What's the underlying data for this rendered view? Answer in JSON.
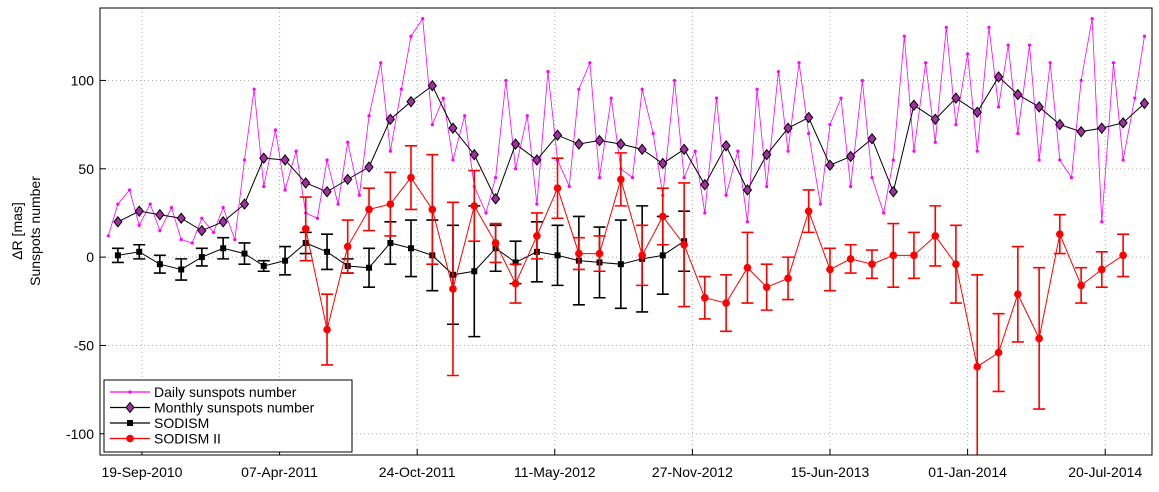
{
  "chart_data": {
    "type": "line",
    "ylabel": [
      "ΔR [mas]",
      "Sunspots number"
    ],
    "xlim": [
      "2010-07-20",
      "2014-09-26"
    ],
    "xticks": [
      {
        "value": "2010-09-19",
        "label": "19-Sep-2010"
      },
      {
        "value": "2011-04-07",
        "label": "07-Apr-2011"
      },
      {
        "value": "2011-10-24",
        "label": "24-Oct-2011"
      },
      {
        "value": "2012-05-11",
        "label": "11-May-2012"
      },
      {
        "value": "2012-11-27",
        "label": "27-Nov-2012"
      },
      {
        "value": "2013-06-15",
        "label": "15-Jun-2013"
      },
      {
        "value": "2014-01-01",
        "label": "01-Jan-2014"
      },
      {
        "value": "2014-07-20",
        "label": "20-Jul-2014"
      }
    ],
    "ylim": [
      -112,
      141
    ],
    "yticks": [
      -100,
      -50,
      0,
      50,
      100
    ],
    "grid": true,
    "legend": "lower left",
    "series": [
      {
        "name": "Daily sunspots number",
        "color": "#ff00ff",
        "marker": "dot",
        "x": [
          "2010-08-01",
          "2010-08-15",
          "2010-09-01",
          "2010-09-15",
          "2010-10-01",
          "2010-10-15",
          "2010-11-01",
          "2010-11-15",
          "2010-12-01",
          "2010-12-15",
          "2011-01-01",
          "2011-01-15",
          "2011-02-01",
          "2011-02-15",
          "2011-03-01",
          "2011-03-15",
          "2011-04-01",
          "2011-04-15",
          "2011-05-01",
          "2011-05-15",
          "2011-06-01",
          "2011-06-15",
          "2011-07-01",
          "2011-07-15",
          "2011-08-01",
          "2011-08-15",
          "2011-09-01",
          "2011-09-15",
          "2011-10-01",
          "2011-10-15",
          "2011-11-01",
          "2011-11-15",
          "2011-12-01",
          "2011-12-15",
          "2012-01-01",
          "2012-01-15",
          "2012-02-01",
          "2012-02-15",
          "2012-03-01",
          "2012-03-15",
          "2012-04-01",
          "2012-04-15",
          "2012-05-01",
          "2012-05-15",
          "2012-06-01",
          "2012-06-15",
          "2012-07-01",
          "2012-07-15",
          "2012-08-01",
          "2012-08-15",
          "2012-09-01",
          "2012-09-15",
          "2012-10-01",
          "2012-10-15",
          "2012-11-01",
          "2012-11-15",
          "2012-12-01",
          "2012-12-15",
          "2013-01-01",
          "2013-01-15",
          "2013-02-01",
          "2013-02-15",
          "2013-03-01",
          "2013-03-15",
          "2013-04-01",
          "2013-04-15",
          "2013-05-01",
          "2013-05-15",
          "2013-06-01",
          "2013-06-15",
          "2013-07-01",
          "2013-07-15",
          "2013-08-01",
          "2013-08-15",
          "2013-09-01",
          "2013-09-15",
          "2013-10-01",
          "2013-10-15",
          "2013-11-01",
          "2013-11-15",
          "2013-12-01",
          "2013-12-15",
          "2014-01-01",
          "2014-01-15",
          "2014-02-01",
          "2014-02-15",
          "2014-03-01",
          "2014-03-15",
          "2014-04-01",
          "2014-04-15",
          "2014-05-01",
          "2014-05-15",
          "2014-06-01",
          "2014-06-15",
          "2014-07-01",
          "2014-07-15",
          "2014-08-01",
          "2014-08-15",
          "2014-09-01",
          "2014-09-15"
        ],
        "values": [
          12,
          30,
          38,
          18,
          30,
          15,
          28,
          10,
          8,
          22,
          14,
          28,
          10,
          55,
          95,
          40,
          72,
          38,
          60,
          25,
          22,
          55,
          30,
          65,
          35,
          80,
          110,
          60,
          95,
          125,
          135,
          75,
          90,
          55,
          80,
          40,
          25,
          45,
          100,
          50,
          80,
          30,
          105,
          55,
          40,
          95,
          110,
          45,
          90,
          50,
          45,
          95,
          70,
          35,
          100,
          45,
          60,
          25,
          90,
          35,
          60,
          20,
          95,
          40,
          105,
          60,
          110,
          70,
          30,
          75,
          90,
          40,
          100,
          45,
          25,
          55,
          125,
          60,
          110,
          65,
          130,
          75,
          115,
          60,
          130,
          85,
          120,
          70,
          120,
          55,
          110,
          55,
          45,
          100,
          135,
          20,
          110,
          55,
          90,
          125
        ]
      },
      {
        "name": "Monthly sunspots number",
        "color": "#000000",
        "marker": "diamond",
        "marker_fill": "#a030a0",
        "x": [
          "2010-08-15",
          "2010-09-15",
          "2010-10-15",
          "2010-11-15",
          "2010-12-15",
          "2011-01-15",
          "2011-02-15",
          "2011-03-15",
          "2011-04-15",
          "2011-05-15",
          "2011-06-15",
          "2011-07-15",
          "2011-08-15",
          "2011-09-15",
          "2011-10-15",
          "2011-11-15",
          "2011-12-15",
          "2012-01-15",
          "2012-02-15",
          "2012-03-15",
          "2012-04-15",
          "2012-05-15",
          "2012-06-15",
          "2012-07-15",
          "2012-08-15",
          "2012-09-15",
          "2012-10-15",
          "2012-11-15",
          "2012-12-15",
          "2013-01-15",
          "2013-02-15",
          "2013-03-15",
          "2013-04-15",
          "2013-05-15",
          "2013-06-15",
          "2013-07-15",
          "2013-08-15",
          "2013-09-15",
          "2013-10-15",
          "2013-11-15",
          "2013-12-15",
          "2014-01-15",
          "2014-02-15",
          "2014-03-15",
          "2014-04-15",
          "2014-05-15",
          "2014-06-15",
          "2014-07-15",
          "2014-08-15",
          "2014-09-15"
        ],
        "values": [
          20,
          26,
          24,
          22,
          15,
          20,
          30,
          56,
          55,
          42,
          37,
          44,
          51,
          78,
          88,
          97,
          73,
          58,
          33,
          64,
          55,
          69,
          64,
          66,
          64,
          61,
          53,
          61,
          41,
          63,
          38,
          58,
          73,
          79,
          52,
          57,
          67,
          37,
          86,
          78,
          90,
          82,
          102,
          92,
          85,
          75,
          71,
          73,
          76,
          87
        ]
      },
      {
        "name": "SODISM",
        "color": "#000000",
        "marker": "square",
        "x": [
          "2010-08-15",
          "2010-09-15",
          "2010-10-15",
          "2010-11-15",
          "2010-12-15",
          "2011-01-15",
          "2011-02-15",
          "2011-03-15",
          "2011-04-15",
          "2011-05-15",
          "2011-06-15",
          "2011-07-15",
          "2011-08-15",
          "2011-09-15",
          "2011-10-15",
          "2011-11-15",
          "2011-12-15",
          "2012-01-15",
          "2012-02-15",
          "2012-03-15",
          "2012-04-15",
          "2012-05-15",
          "2012-06-15",
          "2012-07-15",
          "2012-08-15",
          "2012-09-15",
          "2012-10-15",
          "2012-11-15"
        ],
        "values": [
          1,
          3,
          -4,
          -7,
          0,
          5,
          2,
          -5,
          -2,
          8,
          3,
          -5,
          -6,
          8,
          5,
          1,
          -10,
          -8,
          5,
          -3,
          3,
          1,
          -2,
          -3,
          -4,
          -1,
          1,
          9
        ],
        "errors": [
          4,
          4,
          5,
          6,
          5,
          6,
          6,
          3,
          8,
          6,
          10,
          4,
          11,
          12,
          16,
          20,
          28,
          37,
          13,
          12,
          17,
          17,
          25,
          20,
          25,
          30,
          22,
          17
        ]
      },
      {
        "name": "SODISM II",
        "color": "#ff0000",
        "marker": "circle",
        "x": [
          "2011-05-15",
          "2011-06-15",
          "2011-07-15",
          "2011-08-15",
          "2011-09-15",
          "2011-10-15",
          "2011-11-15",
          "2011-12-15",
          "2012-01-15",
          "2012-02-15",
          "2012-03-15",
          "2012-04-15",
          "2012-05-15",
          "2012-06-15",
          "2012-07-15",
          "2012-08-15",
          "2012-09-15",
          "2012-10-15",
          "2012-11-15",
          "2012-12-15",
          "2013-01-15",
          "2013-02-15",
          "2013-03-15",
          "2013-04-15",
          "2013-05-15",
          "2013-06-15",
          "2013-07-15",
          "2013-08-15",
          "2013-09-15",
          "2013-10-15",
          "2013-11-15",
          "2013-12-15",
          "2014-01-15",
          "2014-02-15",
          "2014-03-15",
          "2014-04-15",
          "2014-05-15",
          "2014-06-15",
          "2014-07-15",
          "2014-08-15"
        ],
        "values": [
          16,
          -41,
          6,
          27,
          30,
          45,
          27,
          -18,
          29,
          8,
          -15,
          12,
          39,
          2,
          2,
          44,
          1,
          23,
          7,
          -23,
          -26,
          -6,
          -17,
          -12,
          26,
          -7,
          -1,
          -4,
          1,
          1,
          12,
          -4,
          -62,
          -54,
          -21,
          -46,
          13,
          -16,
          -7,
          1
        ],
        "errors": [
          18,
          20,
          15,
          12,
          18,
          18,
          31,
          49,
          20,
          11,
          11,
          13,
          17,
          9,
          10,
          15,
          17,
          16,
          35,
          12,
          16,
          20,
          13,
          12,
          12,
          12,
          8,
          8,
          18,
          13,
          17,
          22,
          52,
          22,
          27,
          40,
          11,
          10,
          10,
          12
        ]
      }
    ]
  }
}
